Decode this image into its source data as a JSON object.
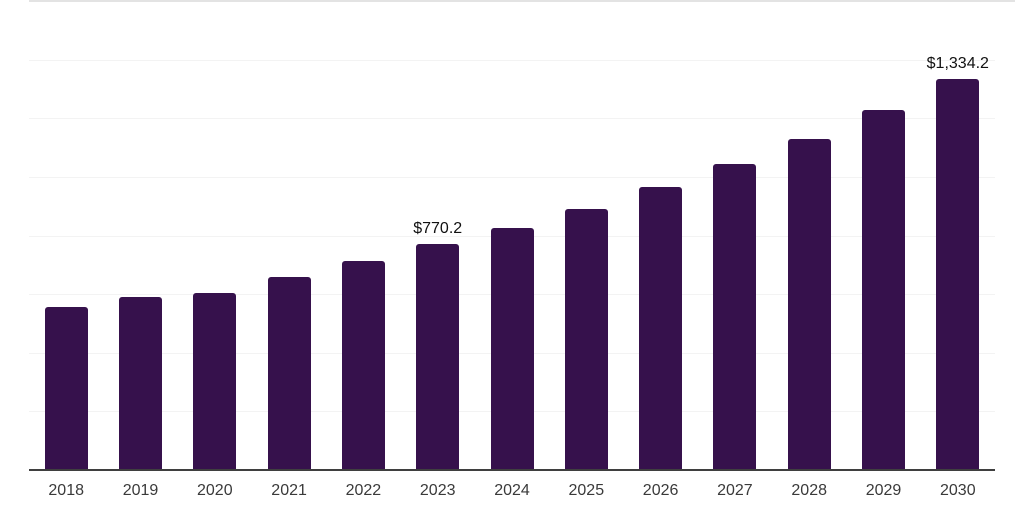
{
  "chart_data": {
    "type": "bar",
    "categories": [
      "2018",
      "2019",
      "2020",
      "2021",
      "2022",
      "2023",
      "2024",
      "2025",
      "2026",
      "2027",
      "2028",
      "2029",
      "2030"
    ],
    "values": [
      556,
      590,
      604,
      660,
      714,
      770.2,
      825,
      889,
      964,
      1043,
      1130,
      1228,
      1334.2
    ],
    "value_labels": [
      "",
      "",
      "",
      "",
      "",
      "$770.2",
      "",
      "",
      "",
      "",
      "",
      "",
      "$1,334.2"
    ],
    "ylim": [
      0,
      1600
    ],
    "gridline_step": 200,
    "grid": true,
    "legend_position": "none",
    "colors": {
      "bar": "#36114c",
      "axis": "#3f3f3f",
      "gridline": "#f3f3f3",
      "top_border": "#e3e3e3",
      "value_label": "#111111",
      "tick_label": "#3a3a3a",
      "background": "#ffffff"
    }
  }
}
